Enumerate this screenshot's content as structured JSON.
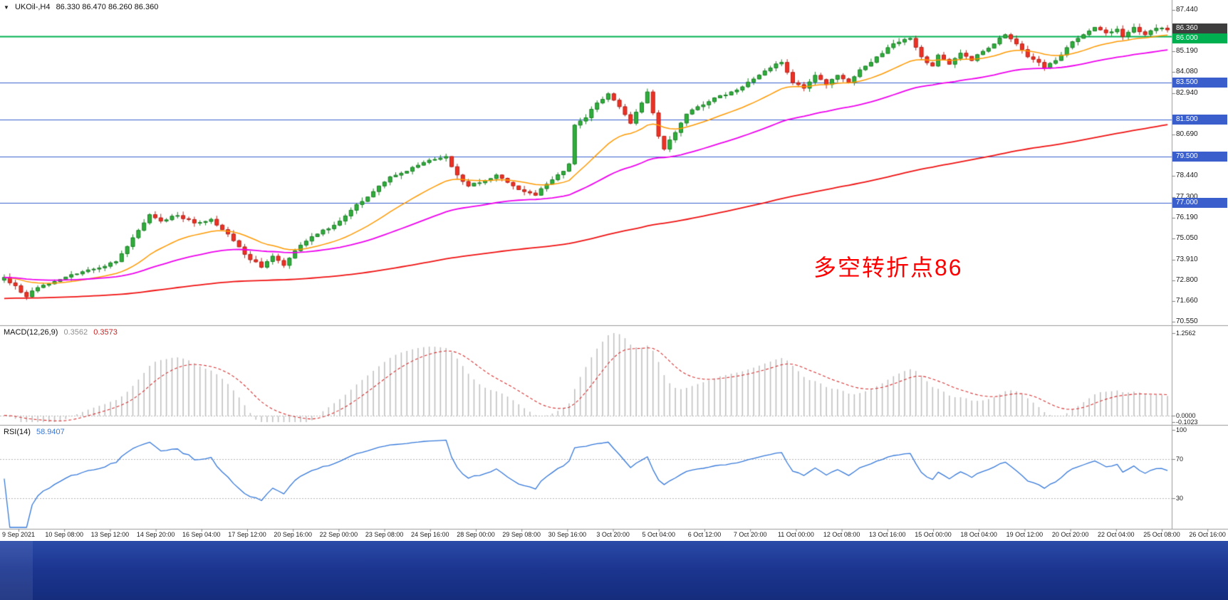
{
  "header": {
    "expander_icon": "▼",
    "symbol_period": "UKOil-,H4",
    "ohlc": "86.330 86.470 86.260 86.360"
  },
  "annotation": {
    "text": "多空转折点86",
    "color": "#ff0000"
  },
  "price_axis": {
    "ticks": [
      "87.440",
      "85.190",
      "84.080",
      "82.940",
      "80.690",
      "78.440",
      "77.300",
      "76.190",
      "75.050",
      "73.910",
      "72.800",
      "71.660",
      "70.550"
    ],
    "tags": [
      {
        "label": "86.360",
        "price": 86.36,
        "bg": "#3d3d3d",
        "type": "last-price"
      },
      {
        "label": "86.000",
        "price": 86.0,
        "bg": "#00b050",
        "type": "horizontal-line"
      },
      {
        "label": "83.500",
        "price": 83.5,
        "bg": "#3a5fcd",
        "type": "horizontal-line"
      },
      {
        "label": "81.500",
        "price": 81.5,
        "bg": "#3a5fcd",
        "type": "horizontal-line"
      },
      {
        "label": "79.500",
        "price": 79.5,
        "bg": "#3a5fcd",
        "type": "horizontal-line"
      },
      {
        "label": "77.000",
        "price": 77.0,
        "bg": "#3a5fcd",
        "type": "horizontal-line"
      }
    ]
  },
  "hlines": [
    {
      "price": 86.0,
      "color": "#00b050",
      "width": 2
    },
    {
      "price": 83.5,
      "color": "#3a5fcd",
      "width": 1.2
    },
    {
      "price": 81.5,
      "color": "#3a5fcd",
      "width": 1.2
    },
    {
      "price": 79.5,
      "color": "#3a5fcd",
      "width": 1.2
    },
    {
      "price": 77.0,
      "color": "#3a5fcd",
      "width": 1.2
    }
  ],
  "time_axis": {
    "labels": [
      "9 Sep 2021",
      "10 Sep 08:00",
      "13 Sep 12:00",
      "14 Sep 20:00",
      "16 Sep 04:00",
      "17 Sep 12:00",
      "20 Sep 16:00",
      "22 Sep 00:00",
      "23 Sep 08:00",
      "24 Sep 16:00",
      "28 Sep 00:00",
      "29 Sep 08:00",
      "30 Sep 16:00",
      "3 Oct 20:00",
      "5 Oct 04:00",
      "6 Oct 12:00",
      "7 Oct 20:00",
      "11 Oct 00:00",
      "12 Oct 08:00",
      "13 Oct 16:00",
      "15 Oct 00:00",
      "18 Oct 04:00",
      "19 Oct 12:00",
      "20 Oct 20:00",
      "22 Oct 04:00",
      "25 Oct 08:00",
      "26 Oct 16:00"
    ]
  },
  "macd_panel": {
    "title": "MACD(12,26,9)",
    "value_main": "0.3562",
    "value_signal": "0.3573",
    "axis_labels": [
      {
        "text": "1.2562",
        "value": 1.2562
      },
      {
        "text": "0.0000",
        "value": 0
      },
      {
        "text": "-0.1023",
        "value": -0.1023
      }
    ]
  },
  "rsi_panel": {
    "title": "RSI(14)",
    "value": "58.9407",
    "levels": [
      70,
      30
    ],
    "axis_labels": [
      {
        "text": "100",
        "value": 100
      },
      {
        "text": "70",
        "value": 70
      },
      {
        "text": "30",
        "value": 30
      }
    ]
  },
  "chart_data": {
    "type": "candlestick",
    "symbol": "UKOil-",
    "timeframe": "H4",
    "title": "UKOil-,H4 86.330 86.470 86.260 86.360",
    "last_ohlc": {
      "open": 86.33,
      "high": 86.47,
      "low": 86.26,
      "close": 86.36
    },
    "y_axis_range": [
      70.55,
      87.44
    ],
    "candle_count": 209,
    "first_open": 72.8,
    "seed": 7,
    "noise": 0.14,
    "wick": 0.22,
    "up_fill": "#2fae3b",
    "up_stroke": "#1b7f26",
    "down_fill": "#ef3124",
    "down_stroke": "#b3221a",
    "close_anchors": [
      [
        0,
        72.95
      ],
      [
        2,
        72.5
      ],
      [
        4,
        71.9
      ],
      [
        6,
        72.4
      ],
      [
        8,
        72.6
      ],
      [
        12,
        73.1
      ],
      [
        16,
        73.4
      ],
      [
        20,
        73.8
      ],
      [
        23,
        75.1
      ],
      [
        26,
        76.35
      ],
      [
        28,
        76.0
      ],
      [
        31,
        76.3
      ],
      [
        34,
        75.9
      ],
      [
        37,
        76.1
      ],
      [
        40,
        75.3
      ],
      [
        43,
        74.2
      ],
      [
        46,
        73.5
      ],
      [
        48,
        74.1
      ],
      [
        50,
        73.6
      ],
      [
        53,
        74.7
      ],
      [
        56,
        75.3
      ],
      [
        60,
        76.0
      ],
      [
        63,
        76.9
      ],
      [
        66,
        77.6
      ],
      [
        69,
        78.4
      ],
      [
        72,
        78.7
      ],
      [
        76,
        79.3
      ],
      [
        79,
        79.5
      ],
      [
        81,
        78.5
      ],
      [
        83,
        77.9
      ],
      [
        86,
        78.2
      ],
      [
        88,
        78.5
      ],
      [
        90,
        78.1
      ],
      [
        93,
        77.6
      ],
      [
        95,
        77.4
      ],
      [
        97,
        78.0
      ],
      [
        100,
        78.7
      ],
      [
        101,
        79.1
      ],
      [
        102,
        81.2
      ],
      [
        104,
        81.6
      ],
      [
        106,
        82.4
      ],
      [
        108,
        82.9
      ],
      [
        110,
        82.2
      ],
      [
        112,
        81.3
      ],
      [
        114,
        82.4
      ],
      [
        115,
        83.0
      ],
      [
        117,
        80.6
      ],
      [
        118,
        79.9
      ],
      [
        120,
        80.8
      ],
      [
        122,
        81.8
      ],
      [
        125,
        82.3
      ],
      [
        128,
        82.8
      ],
      [
        131,
        83.1
      ],
      [
        134,
        83.7
      ],
      [
        137,
        84.3
      ],
      [
        139,
        84.6
      ],
      [
        141,
        83.5
      ],
      [
        143,
        83.2
      ],
      [
        145,
        83.9
      ],
      [
        147,
        83.4
      ],
      [
        149,
        83.9
      ],
      [
        151,
        83.5
      ],
      [
        153,
        84.2
      ],
      [
        156,
        84.9
      ],
      [
        158,
        85.4
      ],
      [
        160,
        85.7
      ],
      [
        162,
        85.9
      ],
      [
        164,
        84.9
      ],
      [
        166,
        84.4
      ],
      [
        167,
        85.0
      ],
      [
        169,
        84.5
      ],
      [
        171,
        85.1
      ],
      [
        173,
        84.7
      ],
      [
        175,
        85.2
      ],
      [
        177,
        85.6
      ],
      [
        179,
        86.1
      ],
      [
        181,
        85.6
      ],
      [
        183,
        84.9
      ],
      [
        185,
        84.6
      ],
      [
        186,
        84.3
      ],
      [
        188,
        84.7
      ],
      [
        190,
        85.4
      ],
      [
        192,
        85.9
      ],
      [
        193,
        86.1
      ],
      [
        195,
        86.5
      ],
      [
        197,
        86.2
      ],
      [
        199,
        86.4
      ],
      [
        200,
        86.0
      ],
      [
        202,
        86.5
      ],
      [
        204,
        86.1
      ],
      [
        206,
        86.45
      ],
      [
        208,
        86.36
      ]
    ],
    "moving_averages": [
      {
        "period": 20,
        "color": "#ff9900",
        "width": 1.5
      },
      {
        "period": 55,
        "color": "#ee00ee",
        "width": 1.8
      },
      {
        "period": 200,
        "color": "#f01010",
        "width": 1.8,
        "seed": 71.8
      }
    ],
    "macd": {
      "fast": 12,
      "slow": 26,
      "signal": 9,
      "scale_max": 1.2562,
      "scale_min": -0.1023,
      "histogram_color": "#c0c0c0",
      "signal_color": "#d63031",
      "current_main": 0.3562,
      "current_signal": 0.3573
    },
    "rsi": {
      "period": 14,
      "color": "#3578d9",
      "current": 58.9407
    }
  }
}
